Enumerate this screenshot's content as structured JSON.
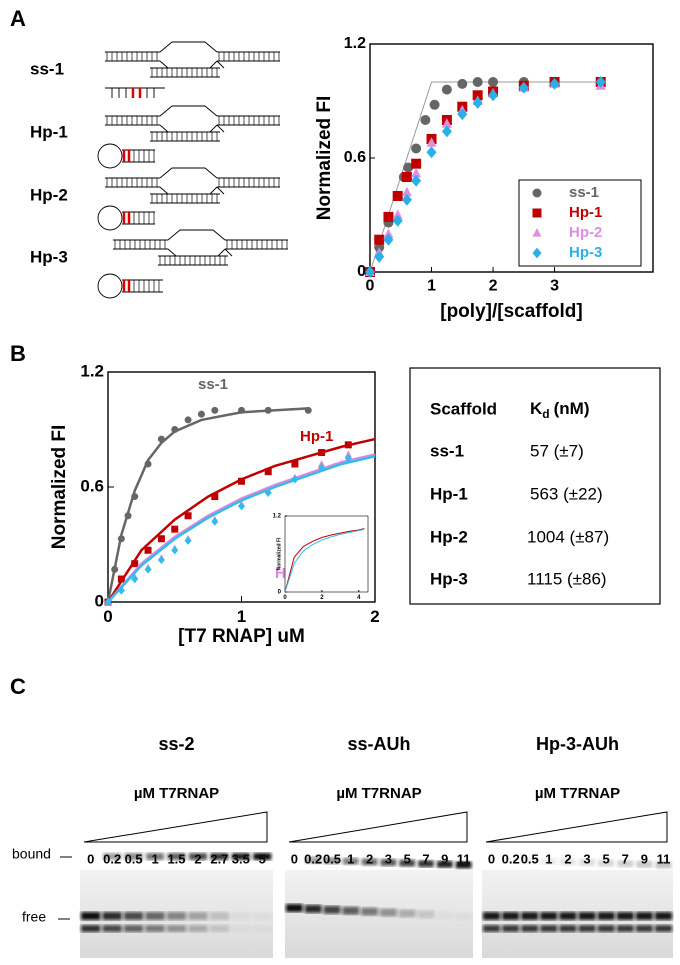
{
  "panels": {
    "a": "A",
    "b": "B",
    "c": "C"
  },
  "diagram_labels": [
    "ss-1",
    "Hp-1",
    "Hp-2",
    "Hp-3"
  ],
  "chart_data": [
    {
      "type": "scatter",
      "ylabel": "Normalized FI",
      "xlabel": "[poly]/[scaffold]",
      "xlim": [
        0,
        4.6
      ],
      "xticks": [
        0,
        1,
        2,
        3
      ],
      "ylim": [
        0,
        1.2
      ],
      "yticks": [
        0,
        0.6,
        1.2
      ],
      "legend": "lower right",
      "series": [
        {
          "name": "ss-1",
          "color": "#666666",
          "marker": "circle",
          "x": [
            0,
            0.15,
            0.3,
            0.45,
            0.55,
            0.62,
            0.75,
            0.9,
            1.05,
            1.25,
            1.5,
            1.75,
            2.0,
            2.5
          ],
          "values": [
            0,
            0.13,
            0.26,
            0.4,
            0.5,
            0.55,
            0.65,
            0.8,
            0.88,
            0.96,
            0.99,
            1.0,
            1.0,
            1.0
          ]
        },
        {
          "name": "Hp-1",
          "color": "#c00000",
          "marker": "square",
          "x": [
            0,
            0.15,
            0.3,
            0.45,
            0.6,
            0.75,
            1.0,
            1.25,
            1.5,
            1.75,
            2.0,
            2.5,
            3.0,
            3.75
          ],
          "values": [
            0,
            0.17,
            0.29,
            0.4,
            0.5,
            0.57,
            0.7,
            0.8,
            0.87,
            0.93,
            0.95,
            0.98,
            1.0,
            1.0
          ]
        },
        {
          "name": "Hp-2",
          "color": "#e08ee0",
          "marker": "triangle",
          "x": [
            0,
            0.15,
            0.3,
            0.45,
            0.6,
            0.75,
            1.0,
            1.25,
            1.5,
            1.75,
            2.0,
            2.5,
            3.0,
            3.75
          ],
          "values": [
            0,
            0.1,
            0.2,
            0.3,
            0.42,
            0.52,
            0.68,
            0.78,
            0.85,
            0.9,
            0.94,
            0.97,
            0.99,
            0.98
          ]
        },
        {
          "name": "Hp-3",
          "color": "#2ab0e8",
          "marker": "diamond",
          "x": [
            0,
            0.15,
            0.3,
            0.45,
            0.6,
            0.75,
            1.0,
            1.25,
            1.5,
            1.75,
            2.0,
            2.5,
            3.0,
            3.75
          ],
          "values": [
            0,
            0.08,
            0.17,
            0.27,
            0.38,
            0.48,
            0.63,
            0.74,
            0.83,
            0.89,
            0.93,
            0.97,
            0.99,
            1.0
          ]
        }
      ],
      "fits": [
        {
          "color": "#9a9a9a",
          "x": [
            0,
            1,
            3.75
          ],
          "values": [
            0,
            1,
            1
          ]
        }
      ]
    },
    {
      "type": "scatter",
      "ylabel": "Normalized FI",
      "xlabel": "[T7 RNAP] uM",
      "xlim": [
        0,
        2
      ],
      "xticks": [
        0,
        1,
        2
      ],
      "ylim": [
        0,
        1.2
      ],
      "yticks": [
        0,
        0.6,
        1.2
      ],
      "series": [
        {
          "name": "ss-1",
          "color": "#666666",
          "marker": "circle",
          "x": [
            0,
            0.05,
            0.1,
            0.15,
            0.2,
            0.3,
            0.4,
            0.5,
            0.6,
            0.7,
            0.8,
            1.0,
            1.2,
            1.5
          ],
          "values": [
            0,
            0.17,
            0.33,
            0.45,
            0.55,
            0.72,
            0.85,
            0.9,
            0.95,
            0.98,
            1.0,
            1.0,
            1.0,
            1.0
          ],
          "fit_x": [
            0,
            0.1,
            0.2,
            0.3,
            0.4,
            0.5,
            0.7,
            1.0,
            1.5
          ],
          "fit_values": [
            0,
            0.35,
            0.58,
            0.74,
            0.83,
            0.89,
            0.95,
            0.99,
            1.01
          ]
        },
        {
          "name": "Hp-1",
          "color": "#c00000",
          "marker": "square",
          "x": [
            0,
            0.1,
            0.2,
            0.3,
            0.4,
            0.5,
            0.6,
            0.8,
            1.0,
            1.2,
            1.4,
            1.6,
            1.8
          ],
          "values": [
            0,
            0.12,
            0.2,
            0.27,
            0.33,
            0.38,
            0.45,
            0.55,
            0.63,
            0.68,
            0.72,
            0.78,
            0.82
          ],
          "fit_x": [
            0,
            0.25,
            0.5,
            0.75,
            1,
            1.25,
            1.5,
            1.75,
            2
          ],
          "fit_values": [
            0,
            0.27,
            0.43,
            0.55,
            0.64,
            0.71,
            0.76,
            0.81,
            0.85
          ]
        },
        {
          "name": "Hp-2",
          "color": "#dd88dd",
          "marker": "triangle",
          "x": [
            0,
            0.1,
            0.2,
            0.3,
            0.4,
            0.5,
            0.6,
            0.8,
            1.0,
            1.2,
            1.4,
            1.6,
            1.8
          ],
          "values": [
            0,
            0.07,
            0.13,
            0.18,
            0.23,
            0.28,
            0.33,
            0.43,
            0.51,
            0.58,
            0.65,
            0.72,
            0.77
          ],
          "fit_x": [
            0,
            0.25,
            0.5,
            0.75,
            1,
            1.25,
            1.5,
            1.75,
            2
          ],
          "fit_values": [
            0,
            0.2,
            0.34,
            0.45,
            0.54,
            0.61,
            0.67,
            0.73,
            0.77
          ]
        },
        {
          "name": "Hp-3",
          "color": "#33bbee",
          "marker": "diamond",
          "x": [
            0,
            0.1,
            0.2,
            0.3,
            0.4,
            0.5,
            0.6,
            0.8,
            1.0,
            1.2,
            1.4,
            1.6,
            1.8
          ],
          "values": [
            0,
            0.06,
            0.12,
            0.17,
            0.22,
            0.27,
            0.32,
            0.42,
            0.5,
            0.57,
            0.64,
            0.7,
            0.75
          ],
          "fit_x": [
            0,
            0.25,
            0.5,
            0.75,
            1,
            1.25,
            1.5,
            1.75,
            2
          ],
          "fit_values": [
            0,
            0.19,
            0.33,
            0.44,
            0.53,
            0.6,
            0.66,
            0.72,
            0.76
          ]
        }
      ]
    },
    {
      "type": "line",
      "ylabel": "Normalized FI",
      "xlim": [
        0,
        4.5
      ],
      "xticks": [
        0,
        2,
        4
      ],
      "ylim": [
        0,
        1.2
      ],
      "yticks": [
        0,
        1.2
      ],
      "series": [
        {
          "color": "#c00000",
          "x": [
            0,
            0.5,
            1,
            1.5,
            2,
            2.5,
            3,
            3.5,
            4,
            4.3
          ],
          "values": [
            0,
            0.55,
            0.72,
            0.8,
            0.86,
            0.9,
            0.93,
            0.96,
            0.98,
            1.0
          ]
        },
        {
          "color": "#33bbee",
          "x": [
            0,
            0.5,
            1,
            1.5,
            2,
            2.5,
            3,
            3.5,
            4,
            4.3
          ],
          "values": [
            0,
            0.45,
            0.65,
            0.75,
            0.82,
            0.87,
            0.91,
            0.94,
            0.97,
            0.99
          ]
        }
      ]
    }
  ],
  "table": {
    "header": [
      "Scaffold",
      {
        "symbol": "K",
        "subscript": "d",
        "unit": "(nM)"
      }
    ],
    "rows": [
      [
        "ss-1",
        "57 (±7)"
      ],
      [
        "Hp-1",
        "563 (±22)"
      ],
      [
        "Hp-2",
        "1004 (±87)"
      ],
      [
        "Hp-3",
        "1115 (±86)"
      ]
    ]
  },
  "band_labels": {
    "bound": "bound",
    "free": "free"
  },
  "gels": [
    {
      "title": "ss-2",
      "subtitle": "µM T7RNAP",
      "lanes": [
        "0",
        "0.2",
        "0.5",
        "1",
        "1.5",
        "2",
        "2.7",
        "3.5",
        "5"
      ]
    },
    {
      "title": "ss-AUh",
      "subtitle": "µM T7RNAP",
      "lanes": [
        "0",
        "0.2",
        "0.5",
        "1",
        "2",
        "3",
        "5",
        "7",
        "9",
        "11"
      ]
    },
    {
      "title": "Hp-3-AUh",
      "subtitle": "µM T7RNAP",
      "lanes": [
        "0",
        "0.2",
        "0.5",
        "1",
        "2",
        "3",
        "5",
        "7",
        "9",
        "11"
      ]
    }
  ]
}
